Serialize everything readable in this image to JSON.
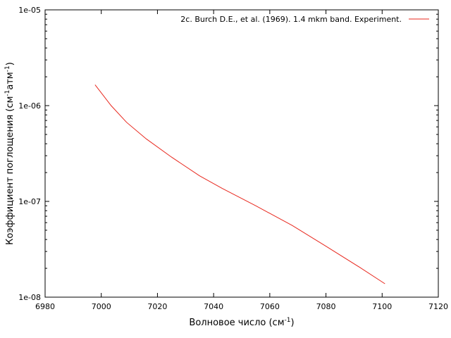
{
  "chart_data": {
    "type": "line",
    "title": "",
    "xlabel": {
      "main": "Волновое число (см",
      "sup": "-1",
      "tail": ")"
    },
    "ylabel": {
      "main": "Коэффициент поглощения (см",
      "sup1": "-1",
      "mid": "атм",
      "sup2": "-1",
      "tail": ")"
    },
    "xlim": [
      6980,
      7120
    ],
    "ylim": [
      1e-08,
      1e-05
    ],
    "yscale": "log",
    "grid": false,
    "legend_position": "top-right",
    "x_ticks": [
      "6980",
      "7000",
      "7020",
      "7040",
      "7060",
      "7080",
      "7100",
      "7120"
    ],
    "y_ticks": [
      "1e-08",
      "1e-07",
      "1e-06",
      "1e-05"
    ],
    "series": [
      {
        "name": "2c. Burch D.E., et al. (1969). 1.4 mkm band. Experiment.",
        "color": "#e8281e",
        "points": [
          [
            6997.8,
            1.65e-06
          ],
          [
            7003.5,
            1e-06
          ],
          [
            7009.0,
            6.7e-07
          ],
          [
            7016.0,
            4.5e-07
          ],
          [
            7025.0,
            2.9e-07
          ],
          [
            7035.0,
            1.85e-07
          ],
          [
            7043.0,
            1.37e-07
          ],
          [
            7055.0,
            9e-08
          ],
          [
            7068.0,
            5.6e-08
          ],
          [
            7080.0,
            3.4e-08
          ],
          [
            7092.0,
            2.05e-08
          ],
          [
            7101.0,
            1.38e-08
          ]
        ]
      }
    ]
  }
}
